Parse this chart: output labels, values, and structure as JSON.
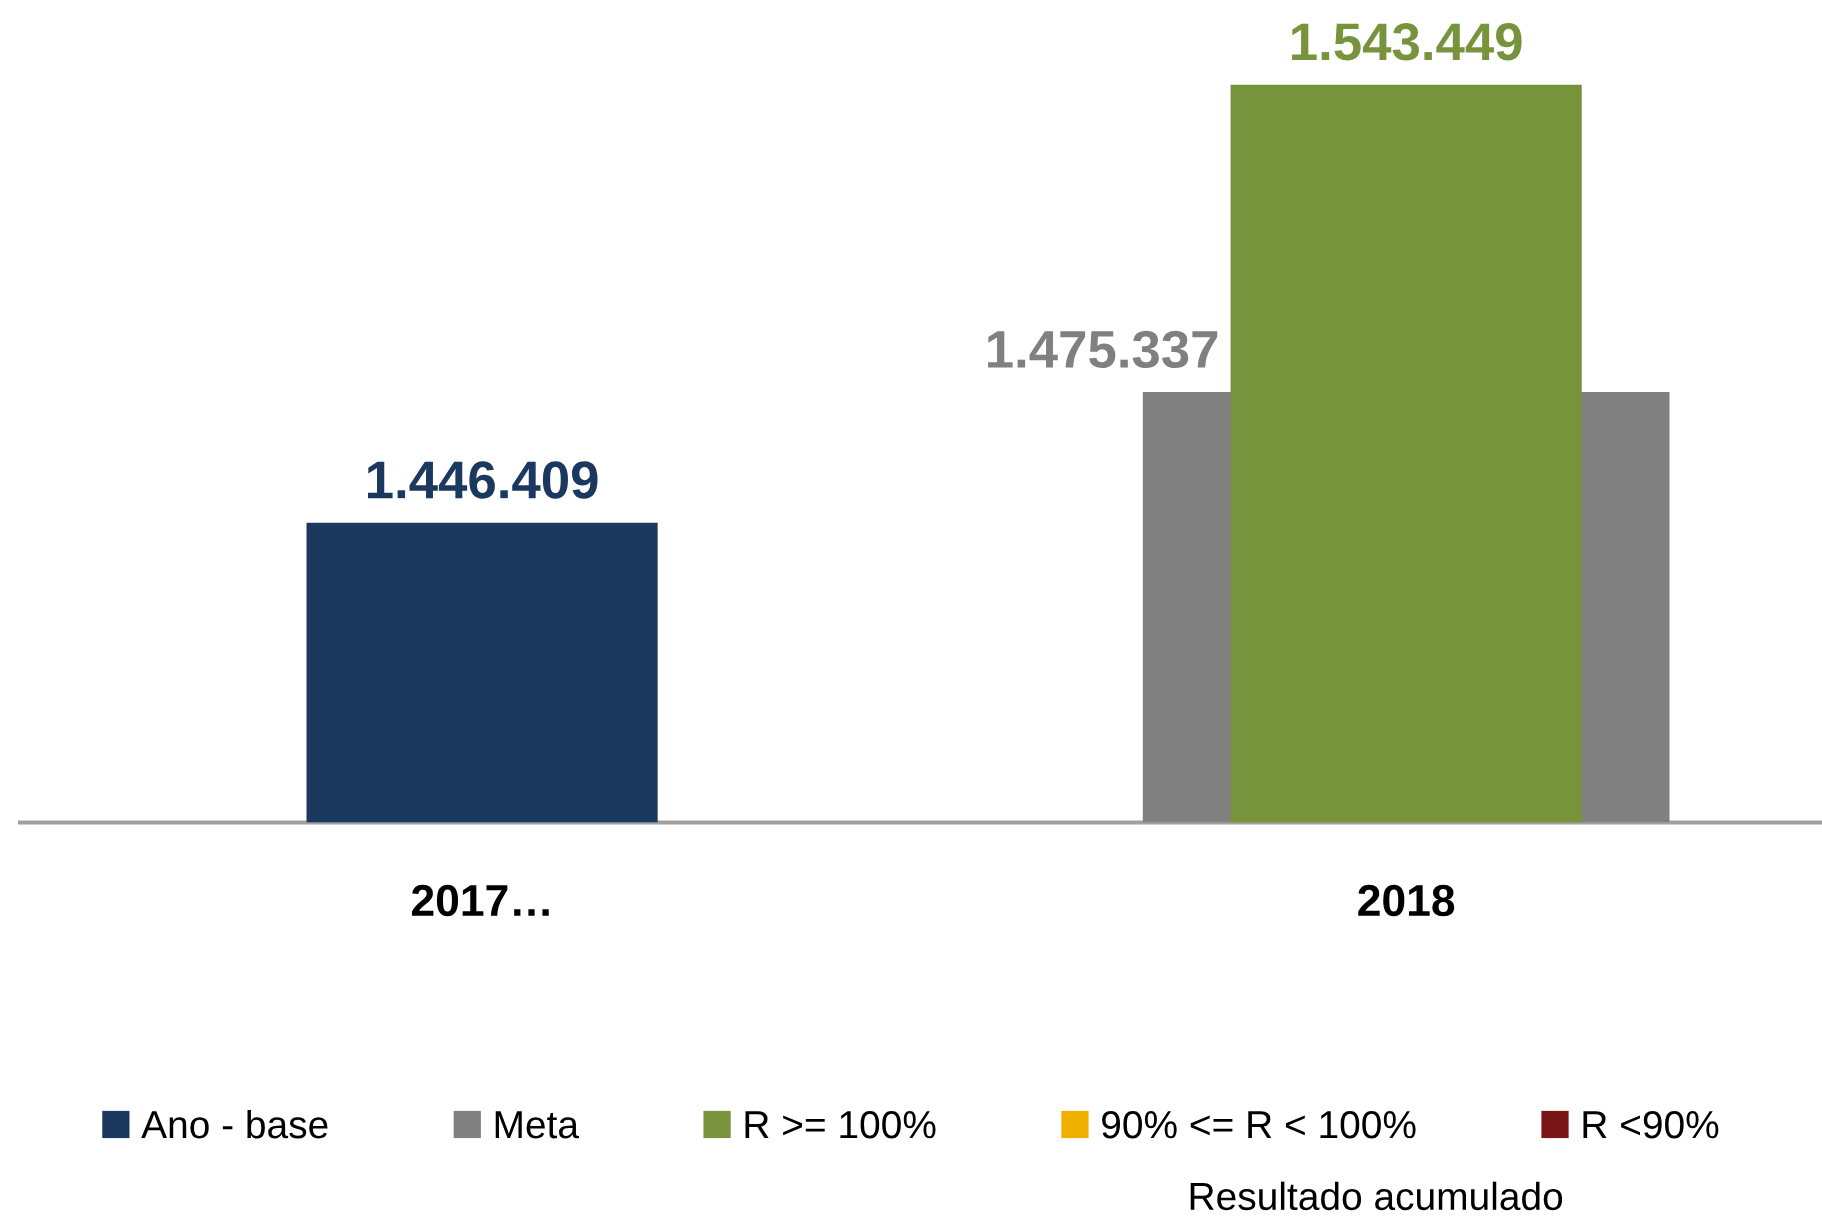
{
  "chart_data": {
    "type": "bar",
    "categories": [
      "2017…",
      "2018"
    ],
    "series": [
      {
        "name": "Ano - base",
        "color": "#1b395e",
        "values": [
          1446409,
          null
        ],
        "value_labels": [
          "1.446.409",
          null
        ]
      },
      {
        "name": "Meta",
        "color": "#808080",
        "values": [
          null,
          1475337
        ],
        "value_labels": [
          null,
          "1.475.337"
        ]
      },
      {
        "name": "R >= 100%",
        "color": "#77933c",
        "values": [
          null,
          1543449
        ],
        "value_labels": [
          null,
          "1.543.449"
        ]
      },
      {
        "name": "90% <= R < 100%",
        "color": "#f0b000",
        "values": [
          null,
          null
        ]
      },
      {
        "name": "R <90%",
        "color": "#7b1416",
        "values": [
          null,
          null
        ]
      }
    ],
    "ylim": [
      1380000,
      1543449
    ],
    "tick_labels": "x",
    "grid": false,
    "legend": "bottom",
    "annotations": [
      "Resultado acumulado"
    ]
  }
}
